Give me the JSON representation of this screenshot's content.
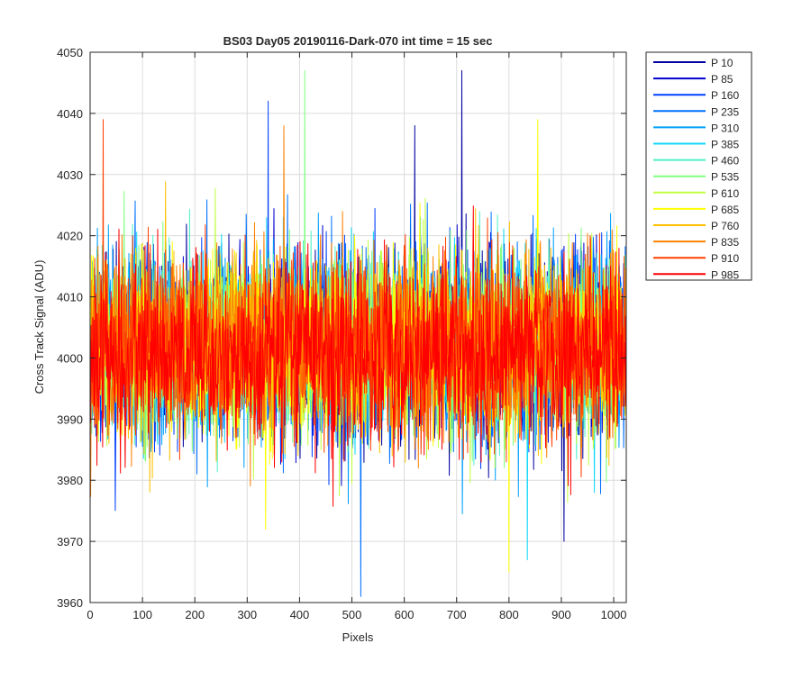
{
  "chart_data": {
    "type": "line",
    "title": "BS03 Day05 20190116-Dark-070 int time = 15 sec",
    "xlabel": "Pixels",
    "ylabel": "Cross Track Signal (ADU)",
    "xlim": [
      0,
      1024
    ],
    "ylim": [
      3960,
      4050
    ],
    "xticks": [
      0,
      100,
      200,
      300,
      400,
      500,
      600,
      700,
      800,
      900,
      1000
    ],
    "yticks": [
      3960,
      3970,
      3980,
      3990,
      4000,
      4010,
      4020,
      4030,
      4040,
      4050
    ],
    "grid": true,
    "legend_position": "outside-right",
    "series": [
      {
        "name": "P 10",
        "color": "#0000A0",
        "baseline": 4002,
        "spikes": [
          [
            620,
            4038
          ],
          [
            710,
            4047
          ],
          [
            905,
            3970
          ]
        ]
      },
      {
        "name": "P 85",
        "color": "#0000D0",
        "baseline": 4002,
        "spikes": []
      },
      {
        "name": "P 160",
        "color": "#0040FF",
        "baseline": 4002,
        "spikes": [
          [
            340,
            4042
          ]
        ]
      },
      {
        "name": "P 235",
        "color": "#0070FF",
        "baseline": 4002,
        "spikes": [
          [
            517,
            3961
          ]
        ]
      },
      {
        "name": "P 310",
        "color": "#00A0FF",
        "baseline": 4002,
        "spikes": []
      },
      {
        "name": "P 385",
        "color": "#10D8F8",
        "baseline": 4002,
        "spikes": [
          [
            835,
            3967
          ]
        ]
      },
      {
        "name": "P 460",
        "color": "#50F0C8",
        "baseline": 4002,
        "spikes": []
      },
      {
        "name": "P 535",
        "color": "#80FF80",
        "baseline": 4002,
        "spikes": [
          [
            410,
            4047
          ]
        ]
      },
      {
        "name": "P 610",
        "color": "#C0FF40",
        "baseline": 4002,
        "spikes": []
      },
      {
        "name": "P 685",
        "color": "#FFFF00",
        "baseline": 4002,
        "spikes": [
          [
            800,
            3965
          ],
          [
            855,
            4039
          ],
          [
            335,
            3972
          ]
        ]
      },
      {
        "name": "P 760",
        "color": "#FFC000",
        "baseline": 4002,
        "spikes": []
      },
      {
        "name": "P 835",
        "color": "#FF8000",
        "baseline": 4002,
        "spikes": [
          [
            370,
            4038
          ]
        ]
      },
      {
        "name": "P 910",
        "color": "#FF4000",
        "baseline": 4002,
        "spikes": [
          [
            25,
            4039
          ]
        ]
      },
      {
        "name": "P 985",
        "color": "#FF0000",
        "baseline": 4001,
        "spikes": []
      }
    ]
  }
}
